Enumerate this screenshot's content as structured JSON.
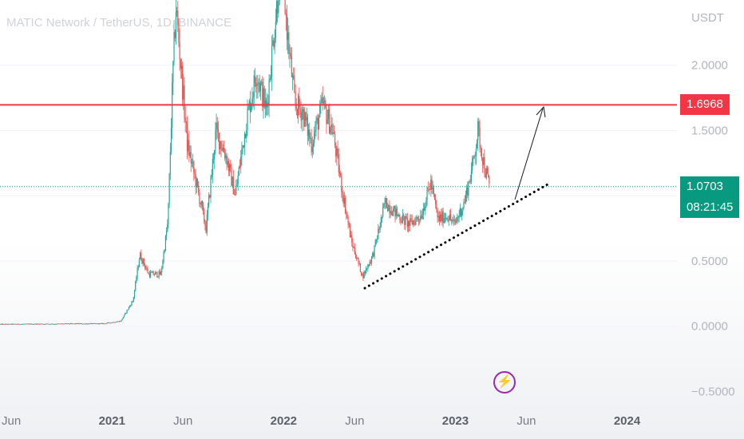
{
  "title": "MATIC Network / TetherUS, 1D, BINANCE",
  "axis_currency": "USDT",
  "colors": {
    "up": "#26a69a",
    "down": "#ef5350",
    "resistance": "#f23645",
    "current": "#089981",
    "accent": "#9c27b0"
  },
  "badges": {
    "resistance": {
      "price": "1.6968"
    },
    "current": {
      "price": "1.0703",
      "countdown": "08:21:45"
    }
  },
  "icons": {
    "flash": "lightning-icon"
  },
  "chart_data": {
    "type": "candlestick",
    "title": "MATIC Network / TetherUS, 1D, BINANCE",
    "y_ticks": [
      2.0,
      1.5,
      1.0,
      0.5,
      0.0,
      -0.5
    ],
    "y_tick_labels": [
      "2.0000",
      "1.5000",
      "1.0000",
      "0.5000",
      "0.0000",
      "−0.5000"
    ],
    "ylim": [
      -0.65,
      2.5
    ],
    "x_ticks": [
      {
        "label": "Jun",
        "date": "2020-06-01",
        "bold": false
      },
      {
        "label": "2021",
        "date": "2021-01-01",
        "bold": true
      },
      {
        "label": "Jun",
        "date": "2021-06-01",
        "bold": false
      },
      {
        "label": "2022",
        "date": "2022-01-01",
        "bold": true
      },
      {
        "label": "Jun",
        "date": "2022-06-01",
        "bold": false
      },
      {
        "label": "2023",
        "date": "2023-01-01",
        "bold": true
      },
      {
        "label": "Jun",
        "date": "2023-06-01",
        "bold": false
      },
      {
        "label": "2024",
        "date": "2024-01-01",
        "bold": true
      }
    ],
    "xlim": [
      "2020-05-08",
      "2024-04-16"
    ],
    "price_path": [
      [
        "2020-05-08",
        0.015
      ],
      [
        "2020-09-01",
        0.018
      ],
      [
        "2020-12-15",
        0.02
      ],
      [
        "2021-01-20",
        0.04
      ],
      [
        "2021-02-15",
        0.2
      ],
      [
        "2021-03-01",
        0.55
      ],
      [
        "2021-03-20",
        0.4
      ],
      [
        "2021-04-15",
        0.4
      ],
      [
        "2021-04-30",
        0.8
      ],
      [
        "2021-05-10",
        1.9
      ],
      [
        "2021-05-17",
        2.45
      ],
      [
        "2021-06-10",
        1.4
      ],
      [
        "2021-07-05",
        1.0
      ],
      [
        "2021-07-20",
        0.75
      ],
      [
        "2021-08-10",
        1.5
      ],
      [
        "2021-09-01",
        1.3
      ],
      [
        "2021-09-20",
        1.0
      ],
      [
        "2021-10-15",
        1.6
      ],
      [
        "2021-11-05",
        1.95
      ],
      [
        "2021-11-25",
        1.65
      ],
      [
        "2021-12-10",
        2.2
      ],
      [
        "2021-12-27",
        2.8
      ],
      [
        "2022-01-10",
        2.2
      ],
      [
        "2022-01-25",
        1.7
      ],
      [
        "2022-02-10",
        1.65
      ],
      [
        "2022-03-01",
        1.4
      ],
      [
        "2022-03-25",
        1.7
      ],
      [
        "2022-04-15",
        1.5
      ],
      [
        "2022-05-05",
        1.05
      ],
      [
        "2022-05-25",
        0.65
      ],
      [
        "2022-06-18",
        0.38
      ],
      [
        "2022-07-10",
        0.55
      ],
      [
        "2022-08-05",
        0.95
      ],
      [
        "2022-09-01",
        0.85
      ],
      [
        "2022-09-25",
        0.78
      ],
      [
        "2022-10-20",
        0.85
      ],
      [
        "2022-11-10",
        1.1
      ],
      [
        "2022-11-25",
        0.82
      ],
      [
        "2022-12-15",
        0.85
      ],
      [
        "2022-12-30",
        0.78
      ],
      [
        "2023-01-20",
        0.95
      ],
      [
        "2023-02-05",
        1.2
      ],
      [
        "2023-02-18",
        1.5
      ],
      [
        "2023-03-05",
        1.2
      ],
      [
        "2023-03-15",
        1.07
      ]
    ],
    "series": [
      {
        "name": "",
        "type": "hline",
        "y": 1.6968
      },
      {
        "name": "",
        "type": "hline",
        "y": 1.0703
      }
    ]
  }
}
